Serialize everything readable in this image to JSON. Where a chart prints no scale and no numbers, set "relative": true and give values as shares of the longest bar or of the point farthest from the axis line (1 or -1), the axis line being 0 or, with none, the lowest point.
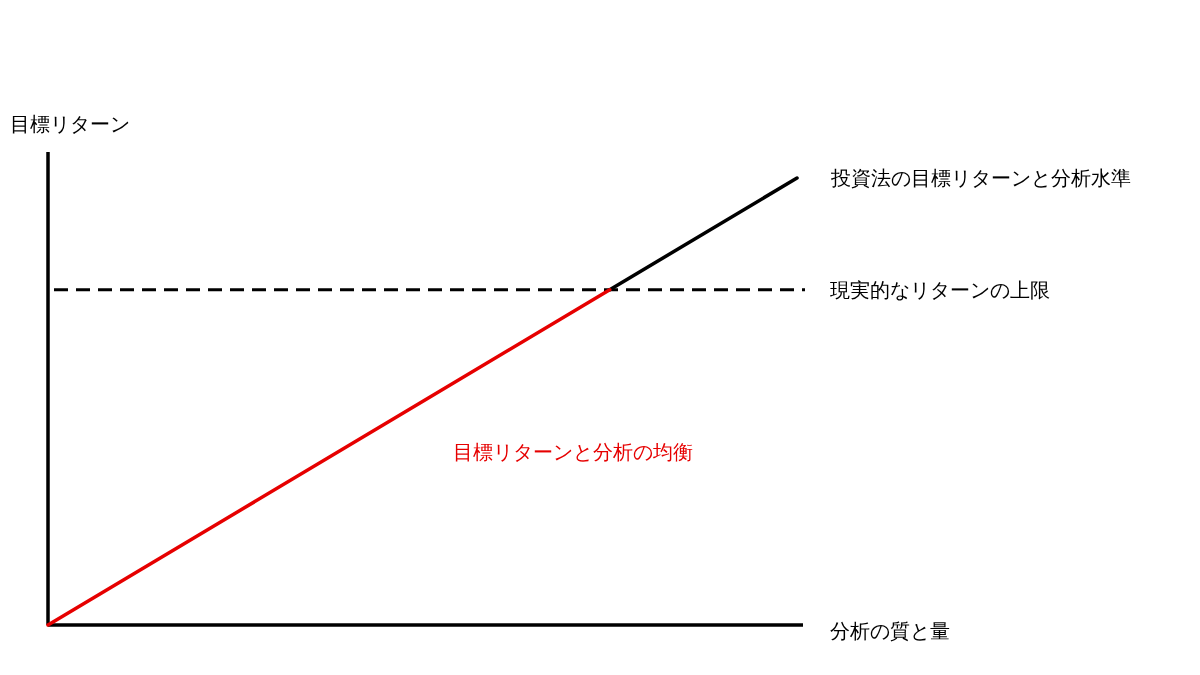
{
  "chart_data": {
    "type": "line",
    "relative": true,
    "xlabel": "分析の質と量",
    "ylabel": "目標リターン",
    "categories": [
      null,
      null,
      null,
      null,
      null
    ],
    "series": [
      {
        "name": "投資法の目標リターンと分析水準",
        "color": "#000000",
        "values": [
          null,
          null,
          null,
          0.75,
          1
        ]
      },
      {
        "name": "目標リターンと分析の均衡",
        "color": "#e60000",
        "values": [
          0,
          0.25,
          0.5,
          0.75,
          null
        ]
      }
    ],
    "ref_lines": [
      {
        "axis": "y",
        "value": 0.75,
        "label": "現実的なリターンの上限",
        "color": "#000000",
        "line_style": "dashed"
      }
    ]
  }
}
